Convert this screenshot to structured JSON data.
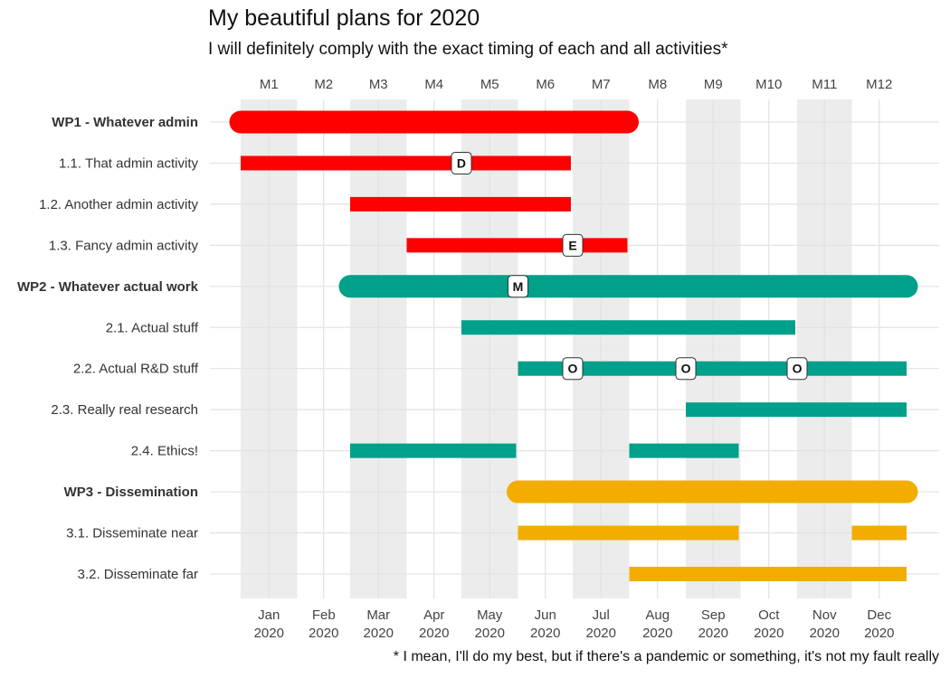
{
  "chart_data": {
    "type": "gantt",
    "title": "My beautiful plans for 2020",
    "subtitle": "I will definitely comply with the exact timing of each and all activities*",
    "caption": "* I mean, I'll do my best, but if there's a pandemic or something, it's not my fault really",
    "project_months": [
      "M1",
      "M2",
      "M3",
      "M4",
      "M5",
      "M6",
      "M7",
      "M8",
      "M9",
      "M10",
      "M11",
      "M12"
    ],
    "x_ticks": [
      {
        "month": "Jan",
        "year": "2020"
      },
      {
        "month": "Feb",
        "year": "2020"
      },
      {
        "month": "Mar",
        "year": "2020"
      },
      {
        "month": "Apr",
        "year": "2020"
      },
      {
        "month": "May",
        "year": "2020"
      },
      {
        "month": "Jun",
        "year": "2020"
      },
      {
        "month": "Jul",
        "year": "2020"
      },
      {
        "month": "Aug",
        "year": "2020"
      },
      {
        "month": "Sep",
        "year": "2020"
      },
      {
        "month": "Oct",
        "year": "2020"
      },
      {
        "month": "Nov",
        "year": "2020"
      },
      {
        "month": "Dec",
        "year": "2020"
      }
    ],
    "shaded_months": [
      "Jan",
      "Mar",
      "May",
      "Jul",
      "Sep",
      "Nov"
    ],
    "colors": {
      "WP1": "#ff0000",
      "WP2": "#00a08a",
      "WP3": "#f2ad00",
      "band": "#ececec",
      "grid": "#e2e2e2"
    },
    "rows": [
      {
        "label": "WP1 - Whatever admin",
        "is_wp": true,
        "wp": "WP1",
        "segments": [
          {
            "start": "2020-01-01",
            "end": "2020-07-31"
          }
        ]
      },
      {
        "label": "1.1. That admin activity",
        "is_wp": false,
        "wp": "WP1",
        "segments": [
          {
            "start": "2020-01-01",
            "end": "2020-06-30"
          }
        ]
      },
      {
        "label": "1.2. Another admin activity",
        "is_wp": false,
        "wp": "WP1",
        "segments": [
          {
            "start": "2020-03-01",
            "end": "2020-06-30"
          }
        ]
      },
      {
        "label": "1.3. Fancy admin activity",
        "is_wp": false,
        "wp": "WP1",
        "segments": [
          {
            "start": "2020-04-01",
            "end": "2020-07-31"
          }
        ]
      },
      {
        "label": "WP2 - Whatever actual work",
        "is_wp": true,
        "wp": "WP2",
        "segments": [
          {
            "start": "2020-03-01",
            "end": "2020-12-31"
          }
        ]
      },
      {
        "label": "2.1. Actual stuff",
        "is_wp": false,
        "wp": "WP2",
        "segments": [
          {
            "start": "2020-05-01",
            "end": "2020-10-31"
          }
        ]
      },
      {
        "label": "2.2. Actual R&D stuff",
        "is_wp": false,
        "wp": "WP2",
        "segments": [
          {
            "start": "2020-06-01",
            "end": "2020-12-31"
          }
        ]
      },
      {
        "label": "2.3. Really real research",
        "is_wp": false,
        "wp": "WP2",
        "segments": [
          {
            "start": "2020-09-01",
            "end": "2020-12-31"
          }
        ]
      },
      {
        "label": "2.4. Ethics!",
        "is_wp": false,
        "wp": "WP2",
        "segments": [
          {
            "start": "2020-03-01",
            "end": "2020-05-31"
          },
          {
            "start": "2020-08-01",
            "end": "2020-09-30"
          }
        ]
      },
      {
        "label": "WP3 - Dissemination",
        "is_wp": true,
        "wp": "WP3",
        "segments": [
          {
            "start": "2020-06-01",
            "end": "2020-12-31"
          }
        ]
      },
      {
        "label": "3.1. Disseminate near",
        "is_wp": false,
        "wp": "WP3",
        "segments": [
          {
            "start": "2020-06-01",
            "end": "2020-09-30"
          },
          {
            "start": "2020-12-01",
            "end": "2020-12-31"
          }
        ]
      },
      {
        "label": "3.2. Disseminate far",
        "is_wp": false,
        "wp": "WP3",
        "segments": [
          {
            "start": "2020-08-01",
            "end": "2020-12-31"
          }
        ]
      }
    ],
    "milestones": [
      {
        "row": "1.1. That admin activity",
        "date": "2020-05-01",
        "label": "D"
      },
      {
        "row": "1.3. Fancy admin activity",
        "date": "2020-07-01",
        "label": "E"
      },
      {
        "row": "WP2 - Whatever actual work",
        "date": "2020-06-01",
        "label": "M"
      },
      {
        "row": "2.2. Actual R&D stuff",
        "date": "2020-07-01",
        "label": "O"
      },
      {
        "row": "2.2. Actual R&D stuff",
        "date": "2020-09-01",
        "label": "O"
      },
      {
        "row": "2.2. Actual R&D stuff",
        "date": "2020-11-01",
        "label": "O"
      }
    ]
  }
}
